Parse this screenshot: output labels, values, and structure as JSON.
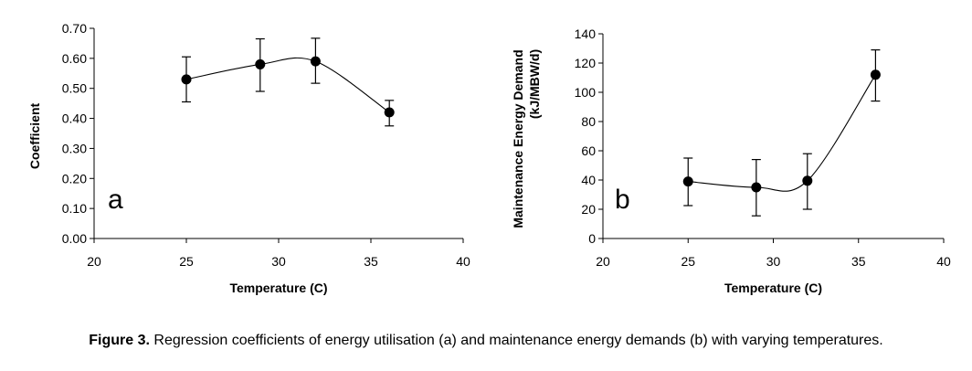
{
  "caption": {
    "label": "Figure 3.",
    "text": " Regression coefficients of energy utilisation (a) and maintenance energy demands (b) with varying temperatures."
  },
  "chart_data": [
    {
      "type": "scatter",
      "panel_label": "a",
      "title": "",
      "xlabel": "Temperature (C)",
      "ylabel": "Coefficient",
      "xlim": [
        20,
        40
      ],
      "ylim": [
        0,
        0.7
      ],
      "xticks": [
        20,
        25,
        30,
        35,
        40
      ],
      "yticks": [
        0.0,
        0.1,
        0.2,
        0.3,
        0.4,
        0.5,
        0.6,
        0.7
      ],
      "ytick_labels": [
        "0.00",
        "0.10",
        "0.20",
        "0.30",
        "0.40",
        "0.50",
        "0.60",
        "0.70"
      ],
      "grid": false,
      "smooth_line": true,
      "series": [
        {
          "name": "Coefficient",
          "x": [
            25,
            29,
            32,
            36
          ],
          "y": [
            0.53,
            0.58,
            0.59,
            0.42
          ],
          "err_upper": [
            0.605,
            0.665,
            0.667,
            0.46
          ],
          "err_lower": [
            0.455,
            0.49,
            0.517,
            0.375
          ]
        }
      ]
    },
    {
      "type": "scatter",
      "panel_label": "b",
      "title": "",
      "xlabel": "Temperature (C)",
      "ylabel": "Maintenance Energy Demand",
      "ylabel2": "(kJ/MBW/d)",
      "xlim": [
        20,
        40
      ],
      "ylim": [
        0,
        140
      ],
      "xticks": [
        20,
        25,
        30,
        35,
        40
      ],
      "yticks": [
        0,
        20,
        40,
        60,
        80,
        100,
        120,
        140
      ],
      "ytick_labels": [
        "0",
        "20",
        "40",
        "60",
        "80",
        "100",
        "120",
        "140"
      ],
      "grid": false,
      "smooth_line": true,
      "series": [
        {
          "name": "Maintenance Energy Demand",
          "x": [
            25,
            29,
            32,
            36
          ],
          "y": [
            39,
            35,
            39.5,
            112
          ],
          "err_upper": [
            55,
            54,
            58,
            129
          ],
          "err_lower": [
            22.5,
            15.5,
            20,
            94
          ]
        }
      ]
    }
  ]
}
